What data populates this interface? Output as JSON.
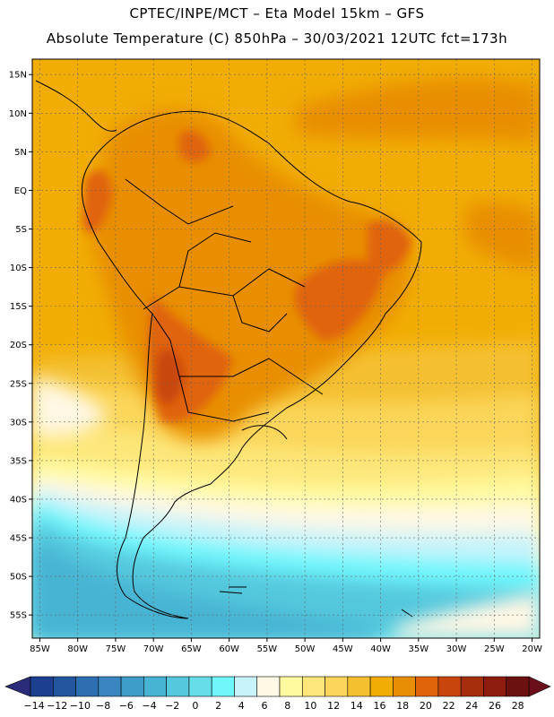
{
  "header": {
    "line1": "CPTEC/INPE/MCT –  Eta Model 15km – GFS",
    "line2": "Absolute Temperature (C) 850hPa – 30/03/2021 12UTC fct=173h"
  },
  "map": {
    "lon_range": [
      -86,
      -19
    ],
    "lat_range": [
      -58,
      17
    ],
    "lon_ticks": [
      "85W",
      "80W",
      "75W",
      "70W",
      "65W",
      "60W",
      "55W",
      "50W",
      "45W",
      "40W",
      "35W",
      "30W",
      "25W",
      "20W"
    ],
    "lat_ticks": [
      "15N",
      "10N",
      "5N",
      "EQ",
      "5S",
      "10S",
      "15S",
      "20S",
      "25S",
      "30S",
      "35S",
      "40S",
      "45S",
      "50S",
      "55S"
    ]
  },
  "colorbar": {
    "labels": [
      "-14",
      "-12",
      "-10",
      "-8",
      "-6",
      "-4",
      "-2",
      "0",
      "2",
      "4",
      "6",
      "8",
      "10",
      "12",
      "14",
      "16",
      "18",
      "20",
      "22",
      "24",
      "26",
      "28"
    ],
    "colors": [
      "#1c3f8f",
      "#2456a0",
      "#2e6fb1",
      "#3a86c0",
      "#3f9ec9",
      "#47b4d3",
      "#55c8dd",
      "#66dde8",
      "#6ff7fc",
      "#c7f3fb",
      "#fff8e5",
      "#fffaa0",
      "#fde77a",
      "#fbd65a",
      "#f4c030",
      "#f1ad04",
      "#e88e04",
      "#e0640a",
      "#c8460d",
      "#a52e0d",
      "#8e1d0f",
      "#6b1210"
    ],
    "under_color": "#2a2c7a",
    "over_color": "#6b0f1a"
  }
}
